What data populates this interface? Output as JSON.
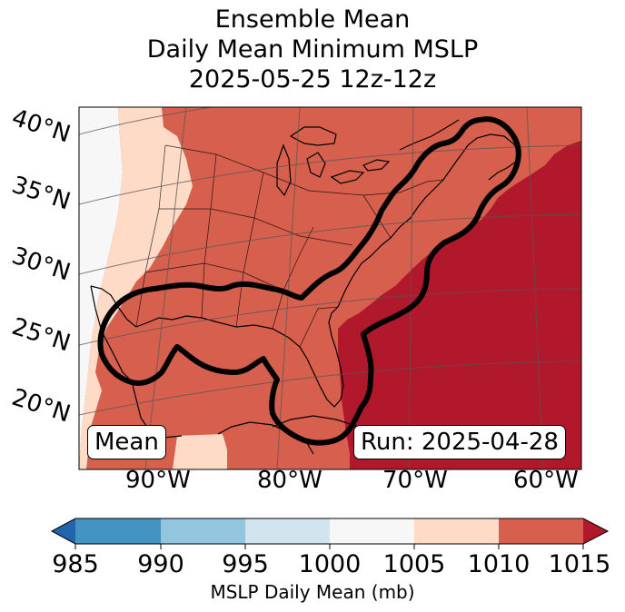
{
  "title": {
    "line1": "Ensemble Mean",
    "line2": "Daily Mean Minimum MSLP",
    "line3": "2025-05-25 12z-12z"
  },
  "lat_labels": [
    "40°N",
    "35°N",
    "30°N",
    "25°N",
    "20°N"
  ],
  "lon_labels": [
    "90°W",
    "80°W",
    "70°W",
    "60°W"
  ],
  "mean_label": "Mean",
  "run_label": "Run: 2025-04-28",
  "colorbar": {
    "ticks": [
      "985",
      "990",
      "995",
      "1000",
      "1005",
      "1010",
      "1015"
    ],
    "label": "MSLP Daily Mean (mb)",
    "colors": {
      "under": "#2166ac",
      "985_990": "#4393c3",
      "990_995": "#92c5de",
      "995_1000": "#d1e5f0",
      "1000_1005": "#f7f7f7",
      "1005_1010": "#fddbc7",
      "1010_1015": "#d6604d",
      "over": "#b2182b"
    }
  }
}
